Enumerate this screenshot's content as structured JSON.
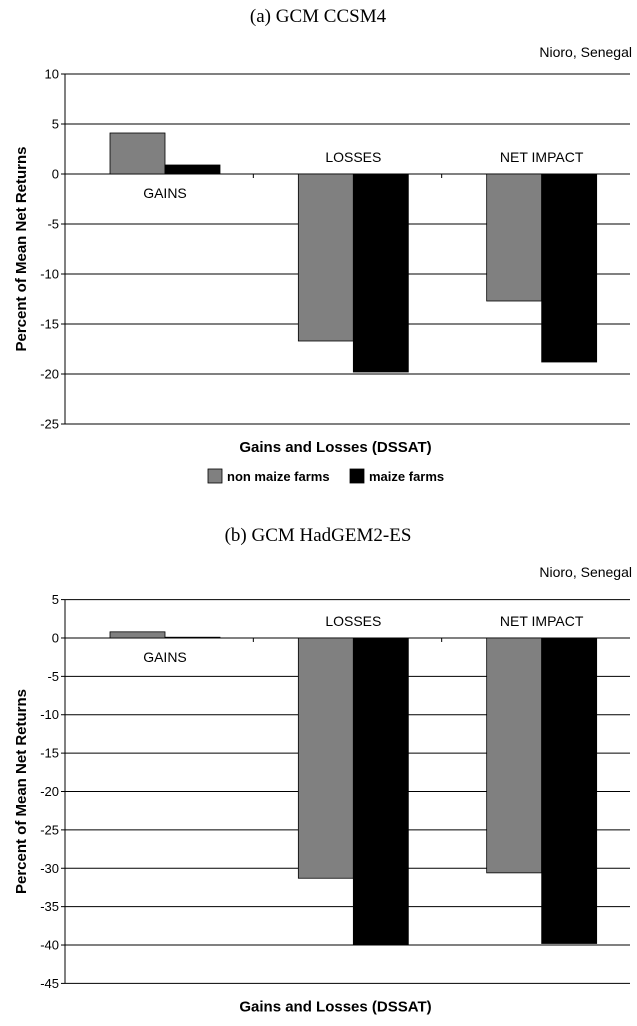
{
  "chart_data": [
    {
      "type": "bar",
      "title": "(a) GCM CCSM4",
      "subtitle": "Nioro, Senegal",
      "xlabel": "Gains and Losses (DSSAT)",
      "ylabel": "Percent of Mean Net Returns",
      "categories": [
        "GAINS",
        "LOSSES",
        "NET IMPACT"
      ],
      "series": [
        {
          "name": "non maize farms",
          "values": [
            4.1,
            -16.7,
            -12.7
          ],
          "color": "#808080"
        },
        {
          "name": "maize farms",
          "values": [
            0.9,
            -19.8,
            -18.8
          ],
          "color": "#000000"
        }
      ],
      "ylim": [
        -25,
        10
      ],
      "yticks": [
        10,
        5,
        0,
        -5,
        -10,
        -15,
        -20,
        -25
      ],
      "grid": true,
      "legend": "bottom"
    },
    {
      "type": "bar",
      "title": "(b) GCM HadGEM2-ES",
      "subtitle": "Nioro, Senegal",
      "xlabel": "Gains and Losses (DSSAT)",
      "ylabel": "Percent of Mean Net Returns",
      "categories": [
        "GAINS",
        "LOSSES",
        "NET IMPACT"
      ],
      "series": [
        {
          "name": "non maize farms",
          "values": [
            0.8,
            -31.3,
            -30.6
          ],
          "color": "#808080"
        },
        {
          "name": "maize farms",
          "values": [
            0.1,
            -40.0,
            -39.8
          ],
          "color": "#000000"
        }
      ],
      "ylim": [
        -45,
        5
      ],
      "yticks": [
        5,
        0,
        -5,
        -10,
        -15,
        -20,
        -25,
        -30,
        -35,
        -40,
        -45
      ],
      "grid": true,
      "legend": "bottom"
    }
  ]
}
